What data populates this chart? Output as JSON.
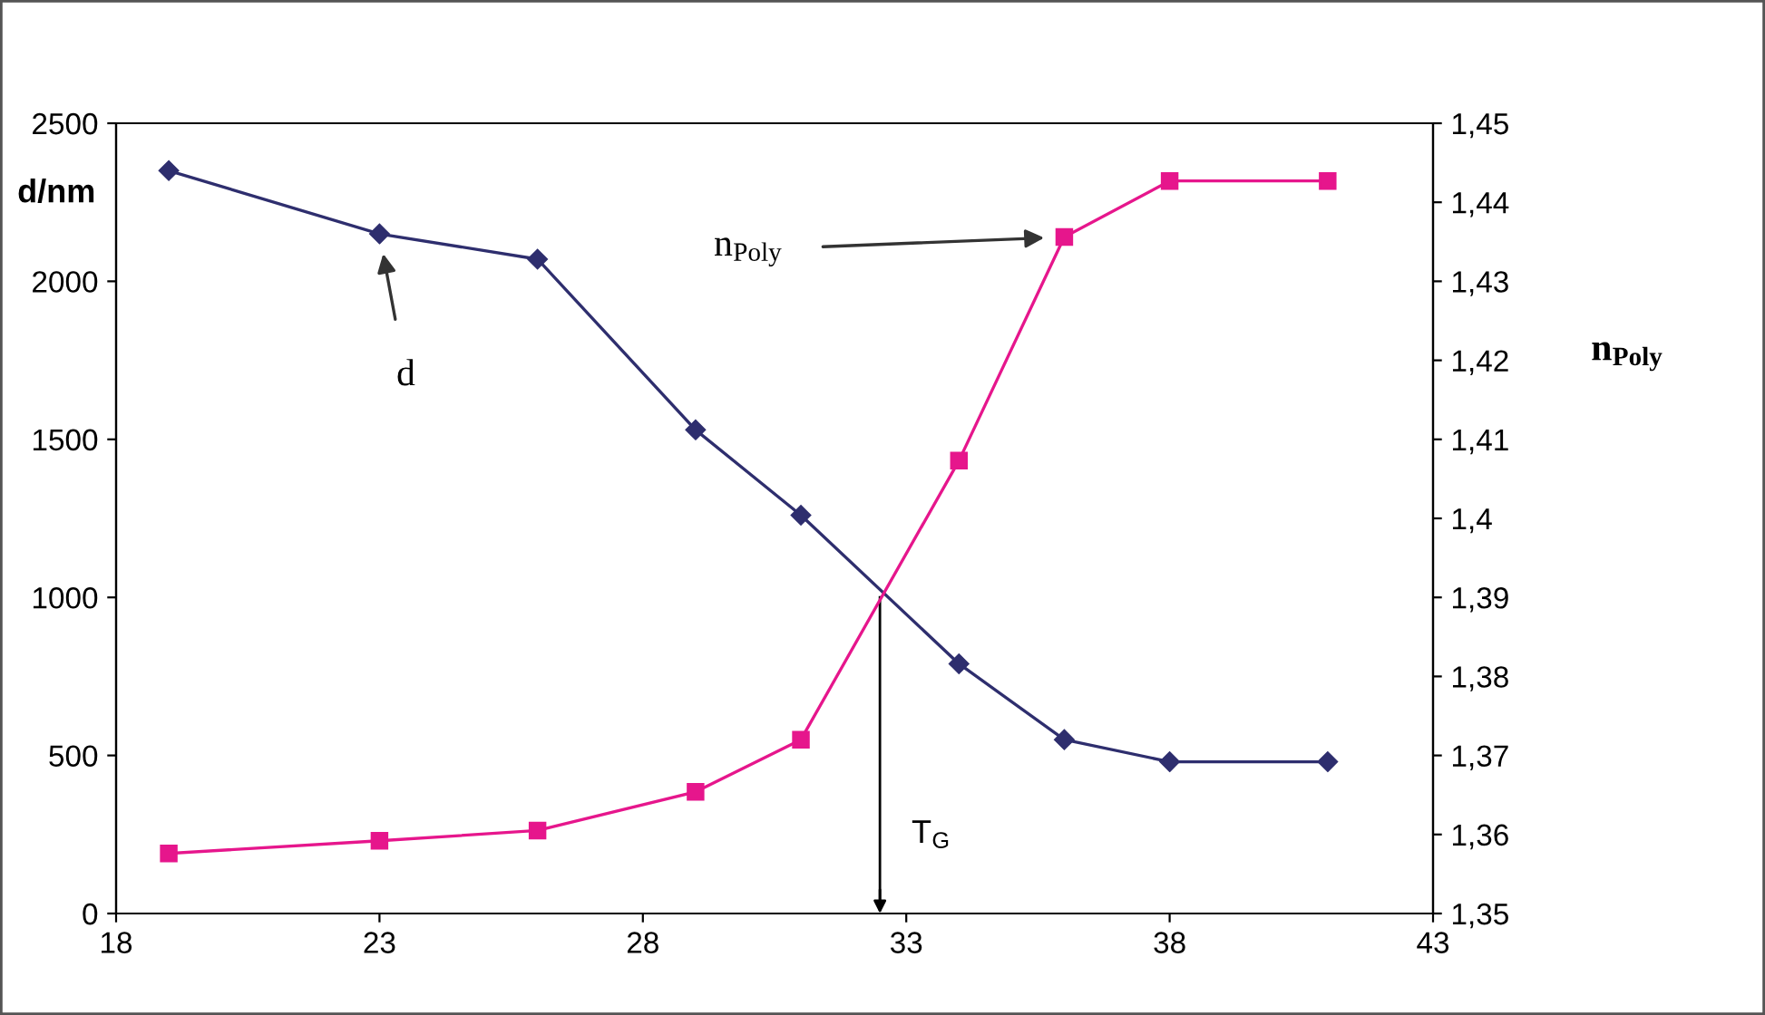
{
  "chart_data": {
    "type": "line",
    "ylabel": "d/nm",
    "y2label": "n$_{Poly}$",
    "xlim": [
      18,
      43
    ],
    "xticks": [
      18,
      23,
      28,
      33,
      38,
      43
    ],
    "ylim": [
      0,
      2500
    ],
    "yticks": [
      0,
      500,
      1000,
      1500,
      2000,
      2500
    ],
    "y2lim": [
      1.35,
      1.45
    ],
    "y2ticks": [
      {
        "value": 1.35,
        "label": "1,35"
      },
      {
        "value": 1.36,
        "label": "1,36"
      },
      {
        "value": 1.37,
        "label": "1,37"
      },
      {
        "value": 1.38,
        "label": "1,38"
      },
      {
        "value": 1.39,
        "label": "1,39"
      },
      {
        "value": 1.4,
        "label": "1,4"
      },
      {
        "value": 1.41,
        "label": "1,41"
      },
      {
        "value": 1.42,
        "label": "1,42"
      },
      {
        "value": 1.43,
        "label": "1,43"
      },
      {
        "value": 1.44,
        "label": "1,44"
      },
      {
        "value": 1.45,
        "label": "1,45"
      }
    ],
    "x": [
      19,
      23,
      26,
      29,
      31,
      34,
      36,
      38,
      41
    ],
    "series": [
      {
        "name": "d",
        "color": "#2e2e6e",
        "marker": "diamond",
        "values": [
          2350,
          2150,
          2070,
          1530,
          1260,
          790,
          550,
          480,
          480
        ]
      },
      {
        "name": "n$_{Poly}$",
        "color": "#e6168c",
        "marker": "square",
        "axis": "y2",
        "values": [
          1.3576,
          1.3592,
          1.3605,
          1.3654,
          1.372,
          1.4073,
          1.4356,
          1.4427,
          1.4427
        ]
      }
    ],
    "ref_lines": [
      {
        "axis": "x",
        "value": 32.5,
        "label": "T$_{G}$",
        "color": "#000000"
      }
    ],
    "grid": false,
    "legend": false,
    "line_style": "solid"
  }
}
